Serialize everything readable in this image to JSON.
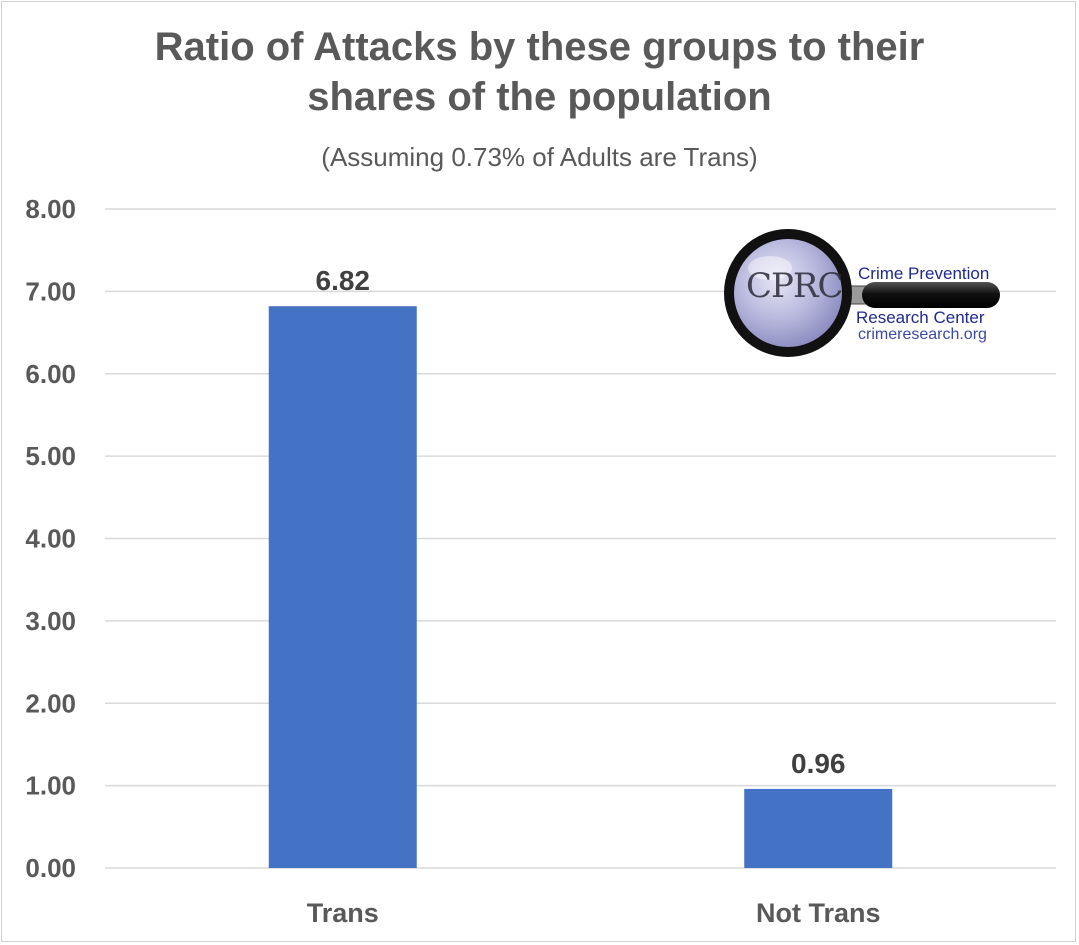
{
  "chart_data": {
    "type": "bar",
    "title_line1": "Ratio of Attacks by these groups to their",
    "title_line2": "shares of the population",
    "subtitle": "(Assuming 0.73% of Adults are Trans)",
    "categories": [
      "Trans",
      "Not Trans"
    ],
    "values": [
      6.82,
      0.96
    ],
    "data_labels": [
      "6.82",
      "0.96"
    ],
    "y_ticks": [
      "0.00",
      "1.00",
      "2.00",
      "3.00",
      "4.00",
      "5.00",
      "6.00",
      "7.00",
      "8.00"
    ],
    "ylim": [
      0,
      8
    ],
    "grid": true,
    "legend": "none",
    "bar_color": "#4472c4",
    "grid_color": "#d9d9d9",
    "text_color": "#595959"
  },
  "logo": {
    "line1": "Crime Prevention",
    "line2": "Research Center",
    "line3": "crimeresearch.org",
    "emblem_text": "CPRC"
  }
}
